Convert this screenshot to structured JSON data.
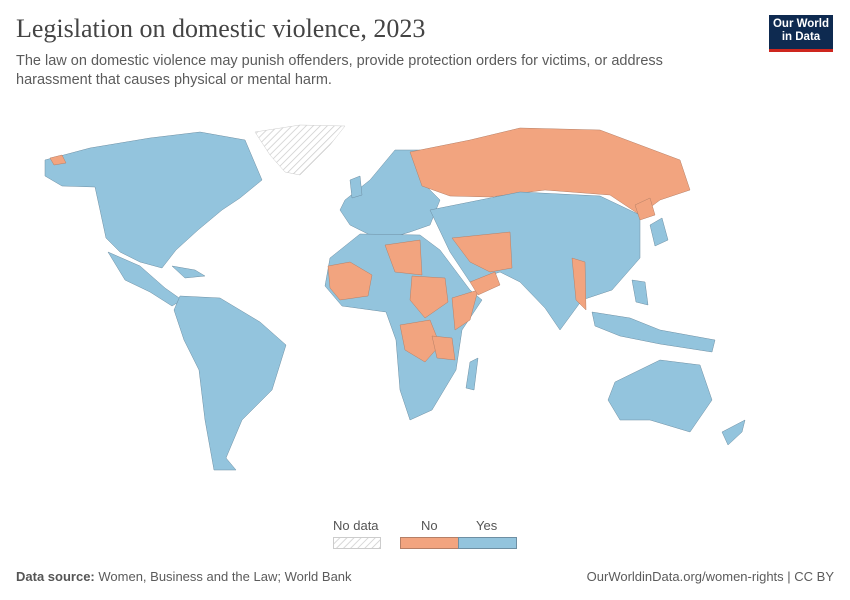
{
  "header": {
    "title": "Legislation on domestic violence, 2023",
    "subtitle": "The law on domestic violence may punish offenders, provide protection orders for victims, or address harassment that causes physical or mental harm.",
    "logo_text": "Our World in Data"
  },
  "legend": {
    "items": [
      {
        "label": "No data",
        "color": "hatched"
      },
      {
        "label": "No",
        "color": "#f2a47f"
      },
      {
        "label": "Yes",
        "color": "#93c4dd"
      }
    ]
  },
  "footer": {
    "source_label": "Data source:",
    "source_text": "Women, Business and the Law; World Bank",
    "url_license": "OurWorldinData.org/women-rights | CC BY"
  }
}
